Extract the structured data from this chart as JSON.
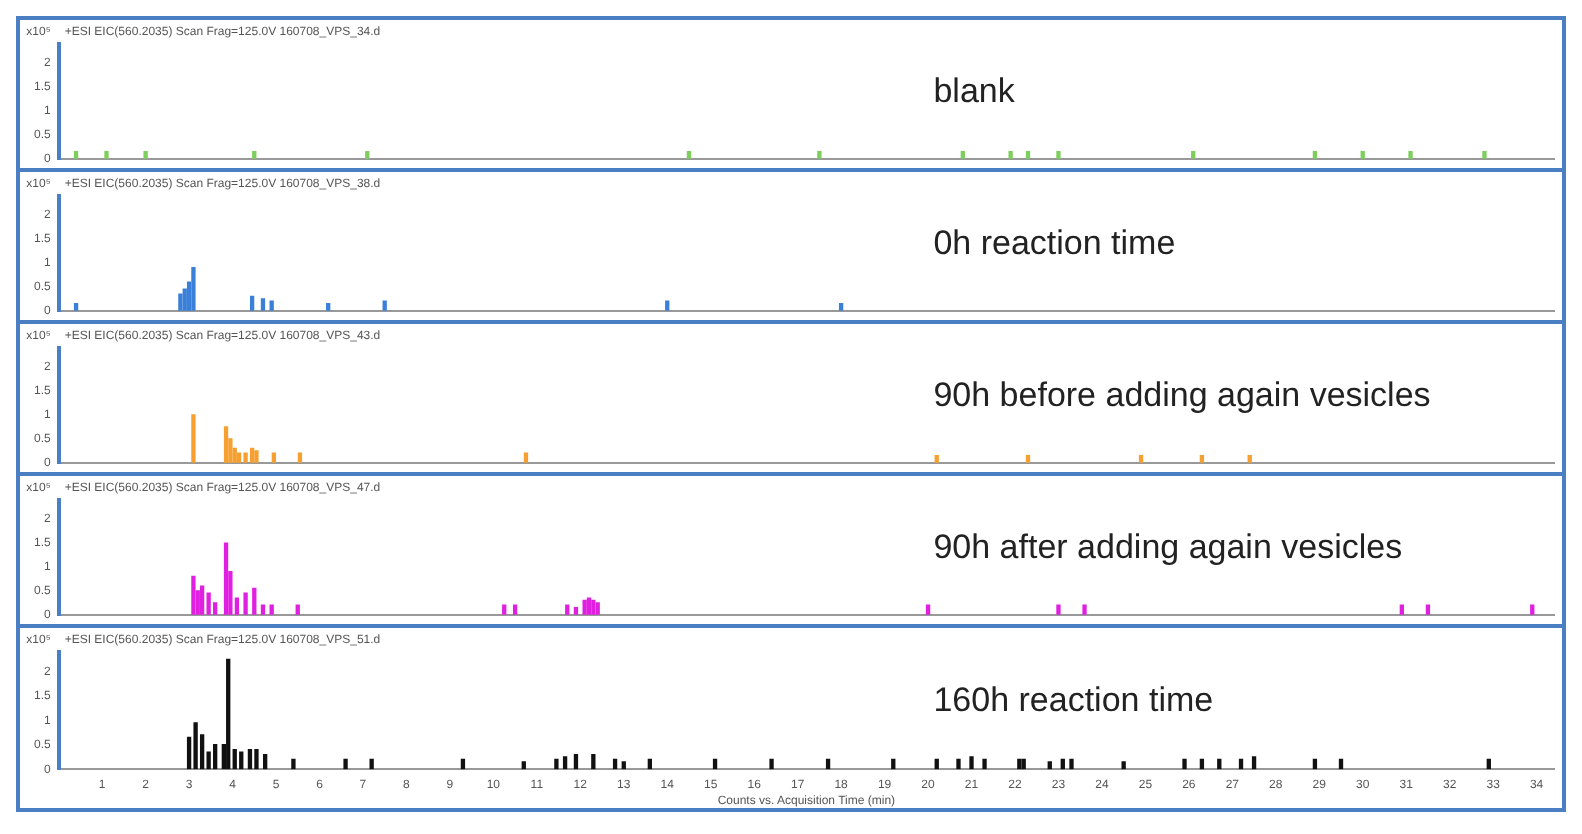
{
  "chart_data": [
    {
      "type": "bar",
      "title": "blank",
      "subtitle": "+ESI EIC(560.2035) Scan Frag=125.0V 160708_VPS_34.d",
      "ylabel": "x10⁵",
      "color": "#7ccf5a",
      "tick_labels": "y",
      "x": [
        0.4,
        1.1,
        2.0,
        4.5,
        7.1,
        14.5,
        17.5,
        20.8,
        21.9,
        22.3,
        23.0,
        26.1,
        28.9,
        30.0,
        31.1,
        32.8
      ],
      "values": [
        0.15,
        0.15,
        0.15,
        0.15,
        0.15,
        0.15,
        0.15,
        0.15,
        0.15,
        0.15,
        0.15,
        0.15,
        0.15,
        0.15,
        0.15,
        0.15
      ],
      "xlim": [
        0,
        34.4
      ],
      "ylim": [
        0,
        2.4
      ],
      "yticks": [
        0,
        0.5,
        1,
        1.5,
        2
      ]
    },
    {
      "type": "bar",
      "title": "0h reaction time",
      "subtitle": "+ESI EIC(560.2035) Scan Frag=125.0V 160708_VPS_38.d",
      "ylabel": "x10⁵",
      "color": "#3a80d8",
      "tick_labels": "y",
      "x": [
        0.4,
        2.8,
        2.9,
        3.0,
        3.1,
        4.45,
        4.7,
        4.9,
        6.2,
        7.5,
        14.0,
        18.0
      ],
      "values": [
        0.15,
        0.35,
        0.45,
        0.6,
        0.9,
        0.3,
        0.25,
        0.2,
        0.15,
        0.2,
        0.2,
        0.15
      ],
      "xlim": [
        0,
        34.4
      ],
      "ylim": [
        0,
        2.4
      ],
      "yticks": [
        0,
        0.5,
        1,
        1.5,
        2
      ]
    },
    {
      "type": "bar",
      "title": "90h before adding again vesicles",
      "subtitle": "+ESI EIC(560.2035) Scan Frag=125.0V 160708_VPS_43.d",
      "ylabel": "x10⁵",
      "color": "#f5a030",
      "tick_labels": "y",
      "x": [
        3.1,
        3.85,
        3.95,
        4.05,
        4.15,
        4.3,
        4.45,
        4.55,
        4.95,
        5.55,
        10.75,
        20.2,
        22.3,
        24.9,
        26.3,
        27.4
      ],
      "values": [
        1.0,
        0.75,
        0.5,
        0.3,
        0.2,
        0.2,
        0.3,
        0.25,
        0.2,
        0.2,
        0.2,
        0.15,
        0.15,
        0.15,
        0.15,
        0.15
      ],
      "xlim": [
        0,
        34.4
      ],
      "ylim": [
        0,
        2.4
      ],
      "yticks": [
        0,
        0.5,
        1,
        1.5,
        2
      ]
    },
    {
      "type": "bar",
      "title": "90h after adding again vesicles",
      "subtitle": "+ESI EIC(560.2035) Scan Frag=125.0V 160708_VPS_47.d",
      "ylabel": "x10⁵",
      "color": "#e020e0",
      "tick_labels": "y",
      "x": [
        3.1,
        3.2,
        3.3,
        3.45,
        3.6,
        3.85,
        3.95,
        4.1,
        4.3,
        4.5,
        4.7,
        4.9,
        5.5,
        10.25,
        10.5,
        11.7,
        11.9,
        12.1,
        12.2,
        12.3,
        12.4,
        20.0,
        23.0,
        23.6,
        30.9,
        31.5,
        33.9
      ],
      "values": [
        0.8,
        0.5,
        0.6,
        0.45,
        0.25,
        1.5,
        0.9,
        0.35,
        0.45,
        0.55,
        0.2,
        0.2,
        0.2,
        0.2,
        0.2,
        0.2,
        0.15,
        0.3,
        0.35,
        0.3,
        0.25,
        0.2,
        0.2,
        0.2,
        0.2,
        0.2,
        0.2
      ],
      "xlim": [
        0,
        34.4
      ],
      "ylim": [
        0,
        2.4
      ],
      "yticks": [
        0,
        0.5,
        1,
        1.5,
        2
      ]
    },
    {
      "type": "bar",
      "title": "160h reaction time",
      "subtitle": "+ESI EIC(560.2035) Scan Frag=125.0V 160708_VPS_51.d",
      "ylabel": "x10⁵",
      "xlabel": "Counts vs. Acquisition Time (min)",
      "color": "#111111",
      "x": [
        3.0,
        3.15,
        3.3,
        3.45,
        3.6,
        3.8,
        3.9,
        4.05,
        4.2,
        4.4,
        4.55,
        4.75,
        5.4,
        6.6,
        7.2,
        9.3,
        10.7,
        11.45,
        11.65,
        11.9,
        12.3,
        12.8,
        13.0,
        13.6,
        15.1,
        16.4,
        17.7,
        19.2,
        20.2,
        20.7,
        21.0,
        21.3,
        22.1,
        22.2,
        22.8,
        23.1,
        23.3,
        24.5,
        25.9,
        26.3,
        26.7,
        27.2,
        27.5,
        28.9,
        29.5,
        32.9
      ],
      "values": [
        0.65,
        0.95,
        0.7,
        0.35,
        0.5,
        0.5,
        2.25,
        0.4,
        0.35,
        0.4,
        0.4,
        0.3,
        0.2,
        0.2,
        0.2,
        0.2,
        0.15,
        0.2,
        0.25,
        0.3,
        0.3,
        0.2,
        0.15,
        0.2,
        0.2,
        0.2,
        0.2,
        0.2,
        0.2,
        0.2,
        0.25,
        0.2,
        0.2,
        0.2,
        0.15,
        0.2,
        0.2,
        0.15,
        0.2,
        0.2,
        0.2,
        0.2,
        0.25,
        0.2,
        0.2,
        0.2
      ],
      "xlim": [
        0,
        34.4
      ],
      "xticks": [
        1,
        2,
        3,
        4,
        5,
        6,
        7,
        8,
        9,
        10,
        11,
        12,
        13,
        14,
        15,
        16,
        17,
        18,
        19,
        20,
        21,
        22,
        23,
        24,
        25,
        26,
        27,
        28,
        29,
        30,
        31,
        32,
        33,
        34
      ],
      "ylim": [
        0,
        2.4
      ],
      "yticks": [
        0,
        0.5,
        1,
        1.5,
        2
      ]
    }
  ]
}
